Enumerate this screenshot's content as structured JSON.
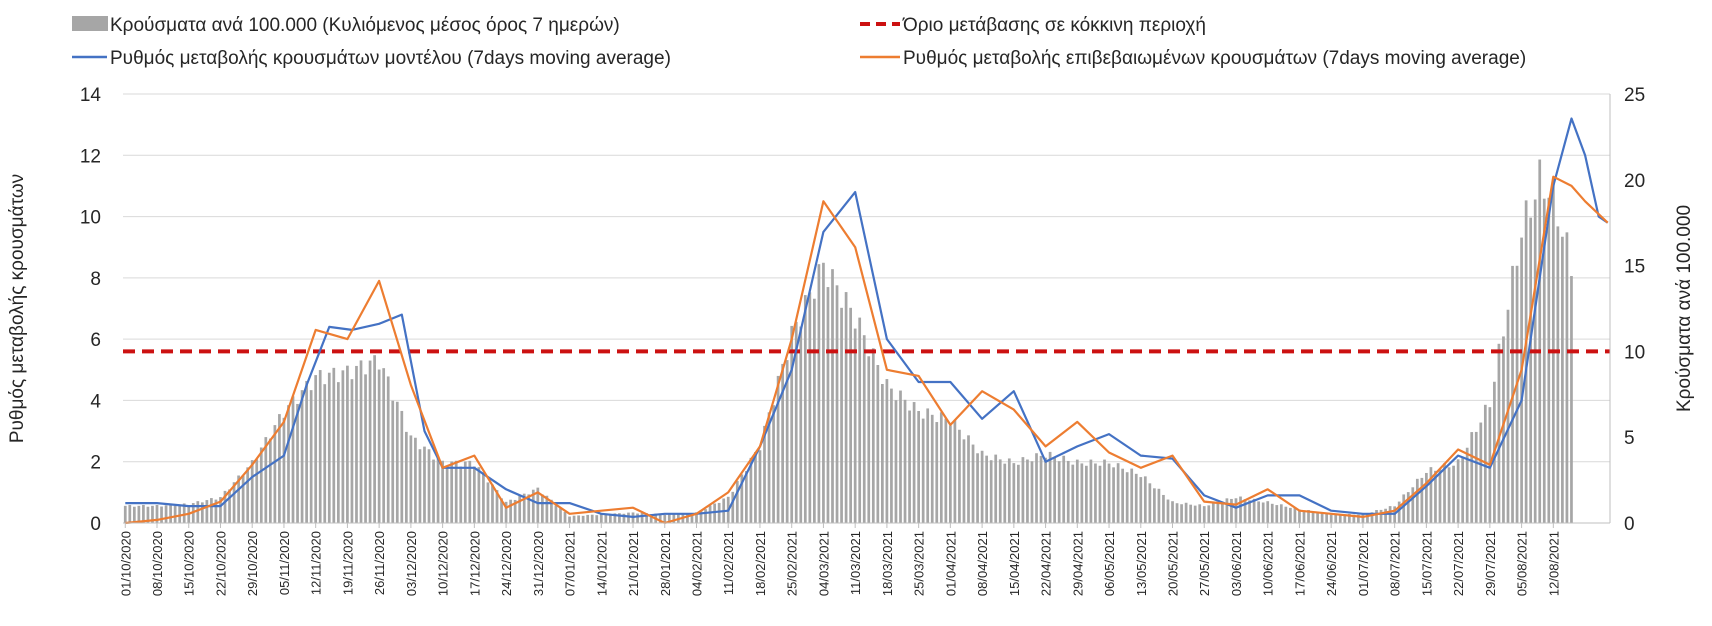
{
  "chart_data": {
    "type": "bar",
    "legend_placement": "top",
    "grid": true,
    "y_left": {
      "label": "Ρυθμός μεταβολής κρουσμάτων",
      "lim": [
        0,
        14
      ],
      "ticks": [
        "0",
        "2",
        "4",
        "6",
        "8",
        "10",
        "12",
        "14"
      ]
    },
    "y_right": {
      "label": "Κρούσματα ανά 100.000",
      "lim": [
        0,
        25
      ],
      "ticks": [
        "0",
        "5",
        "10",
        "15",
        "20",
        "25"
      ]
    },
    "x_start_date": "01/10/2020",
    "x_tick_labels": [
      "01/10/2020",
      "08/10/2020",
      "15/10/2020",
      "22/10/2020",
      "29/10/2020",
      "05/11/2020",
      "12/11/2020",
      "19/11/2020",
      "26/11/2020",
      "03/12/2020",
      "10/12/2020",
      "17/12/2020",
      "24/12/2020",
      "31/12/2020",
      "07/01/2021",
      "14/01/2021",
      "21/01/2021",
      "28/01/2021",
      "04/02/2021",
      "11/02/2021",
      "18/02/2021",
      "25/02/2021",
      "04/03/2021",
      "11/03/2021",
      "18/03/2021",
      "25/03/2021",
      "01/04/2021",
      "08/04/2021",
      "15/04/2021",
      "22/04/2021",
      "29/04/2021",
      "06/05/2021",
      "13/05/2021",
      "20/05/2021",
      "27/05/2021",
      "03/06/2021",
      "10/06/2021",
      "17/06/2021",
      "24/06/2021",
      "01/07/2021",
      "08/07/2021",
      "15/07/2021",
      "22/07/2021",
      "29/07/2021",
      "05/08/2021",
      "12/08/2021"
    ],
    "series": [
      {
        "name": "Κρούσματα ανά 100.000 (Κυλιόμενος μέσος όρος 7 ημερών)",
        "kind": "bar",
        "axis": "right",
        "color": "#a6a6a6",
        "points": [
          [
            0,
            1
          ],
          [
            7,
            1
          ],
          [
            14,
            1.1
          ],
          [
            21,
            1.5
          ],
          [
            28,
            3.5
          ],
          [
            35,
            6.5
          ],
          [
            42,
            8.5
          ],
          [
            49,
            8.8
          ],
          [
            56,
            9.5
          ],
          [
            63,
            5
          ],
          [
            70,
            3.5
          ],
          [
            77,
            3.5
          ],
          [
            84,
            1.2
          ],
          [
            91,
            2
          ],
          [
            98,
            0.4
          ],
          [
            105,
            0.5
          ],
          [
            112,
            0.6
          ],
          [
            119,
            0.5
          ],
          [
            126,
            0.6
          ],
          [
            133,
            1.5
          ],
          [
            140,
            4.5
          ],
          [
            147,
            11
          ],
          [
            154,
            15
          ],
          [
            161,
            12
          ],
          [
            168,
            8
          ],
          [
            175,
            6.5
          ],
          [
            182,
            6
          ],
          [
            189,
            4
          ],
          [
            196,
            3.5
          ],
          [
            203,
            4
          ],
          [
            210,
            3.5
          ],
          [
            217,
            3.5
          ],
          [
            224,
            2.8
          ],
          [
            231,
            1.2
          ],
          [
            238,
            1
          ],
          [
            245,
            1.5
          ],
          [
            252,
            1.2
          ],
          [
            259,
            0.8
          ],
          [
            266,
            0.5
          ],
          [
            273,
            0.5
          ],
          [
            280,
            1
          ],
          [
            287,
            3
          ],
          [
            294,
            3.5
          ],
          [
            301,
            7
          ],
          [
            308,
            17
          ],
          [
            312,
            20
          ],
          [
            315,
            19
          ],
          [
            318,
            16
          ],
          [
            319,
            15
          ]
        ]
      },
      {
        "name": "Όριο μετάβασης σε κόκκινη περιοχή",
        "kind": "hline",
        "axis": "right",
        "color": "#cc1111",
        "value": 10
      },
      {
        "name": "Ρυθμός μεταβολής κρουσμάτων μοντέλου (7days moving average)",
        "kind": "line",
        "axis": "left",
        "color": "#4472c4",
        "points": [
          [
            0,
            0.65
          ],
          [
            7,
            0.65
          ],
          [
            14,
            0.55
          ],
          [
            21,
            0.55
          ],
          [
            28,
            1.5
          ],
          [
            35,
            2.2
          ],
          [
            40,
            4.5
          ],
          [
            45,
            6.4
          ],
          [
            50,
            6.3
          ],
          [
            56,
            6.5
          ],
          [
            61,
            6.8
          ],
          [
            66,
            3
          ],
          [
            70,
            1.8
          ],
          [
            77,
            1.8
          ],
          [
            84,
            1.1
          ],
          [
            91,
            0.65
          ],
          [
            98,
            0.65
          ],
          [
            105,
            0.3
          ],
          [
            112,
            0.2
          ],
          [
            119,
            0.3
          ],
          [
            126,
            0.3
          ],
          [
            133,
            0.4
          ],
          [
            140,
            2.5
          ],
          [
            147,
            5
          ],
          [
            154,
            9.5
          ],
          [
            161,
            10.8
          ],
          [
            168,
            6
          ],
          [
            175,
            4.6
          ],
          [
            182,
            4.6
          ],
          [
            189,
            3.4
          ],
          [
            196,
            4.3
          ],
          [
            203,
            2
          ],
          [
            210,
            2.5
          ],
          [
            217,
            2.9
          ],
          [
            224,
            2.2
          ],
          [
            231,
            2.1
          ],
          [
            238,
            0.9
          ],
          [
            245,
            0.5
          ],
          [
            252,
            0.9
          ],
          [
            259,
            0.9
          ],
          [
            266,
            0.4
          ],
          [
            273,
            0.3
          ],
          [
            280,
            0.3
          ],
          [
            287,
            1.2
          ],
          [
            294,
            2.2
          ],
          [
            301,
            1.8
          ],
          [
            308,
            4
          ],
          [
            315,
            11
          ],
          [
            319,
            13.2
          ],
          [
            322,
            12
          ],
          [
            325,
            10
          ],
          [
            327,
            9.8
          ]
        ]
      },
      {
        "name": "Ρυθμός μεταβολής επιβεβαιωμένων κρουσμάτων (7days moving average)",
        "kind": "line",
        "axis": "left",
        "color": "#ed7d31",
        "points": [
          [
            0,
            0
          ],
          [
            7,
            0.1
          ],
          [
            14,
            0.3
          ],
          [
            21,
            0.7
          ],
          [
            28,
            1.9
          ],
          [
            35,
            3.3
          ],
          [
            42,
            6.3
          ],
          [
            49,
            6
          ],
          [
            56,
            7.9
          ],
          [
            63,
            4.5
          ],
          [
            70,
            1.8
          ],
          [
            77,
            2.2
          ],
          [
            84,
            0.5
          ],
          [
            91,
            1
          ],
          [
            98,
            0.3
          ],
          [
            105,
            0.4
          ],
          [
            112,
            0.5
          ],
          [
            119,
            0
          ],
          [
            126,
            0.3
          ],
          [
            133,
            1
          ],
          [
            140,
            2.5
          ],
          [
            147,
            6
          ],
          [
            154,
            10.5
          ],
          [
            161,
            9
          ],
          [
            168,
            5
          ],
          [
            175,
            4.8
          ],
          [
            182,
            3.2
          ],
          [
            189,
            4.3
          ],
          [
            196,
            3.7
          ],
          [
            203,
            2.5
          ],
          [
            210,
            3.3
          ],
          [
            217,
            2.3
          ],
          [
            224,
            1.8
          ],
          [
            231,
            2.2
          ],
          [
            238,
            0.7
          ],
          [
            245,
            0.6
          ],
          [
            252,
            1.1
          ],
          [
            259,
            0.4
          ],
          [
            266,
            0.3
          ],
          [
            273,
            0.2
          ],
          [
            280,
            0.4
          ],
          [
            287,
            1.3
          ],
          [
            294,
            2.4
          ],
          [
            301,
            1.9
          ],
          [
            308,
            5
          ],
          [
            315,
            11.3
          ],
          [
            319,
            11
          ],
          [
            322,
            10.5
          ],
          [
            327,
            9.8
          ]
        ]
      }
    ]
  }
}
